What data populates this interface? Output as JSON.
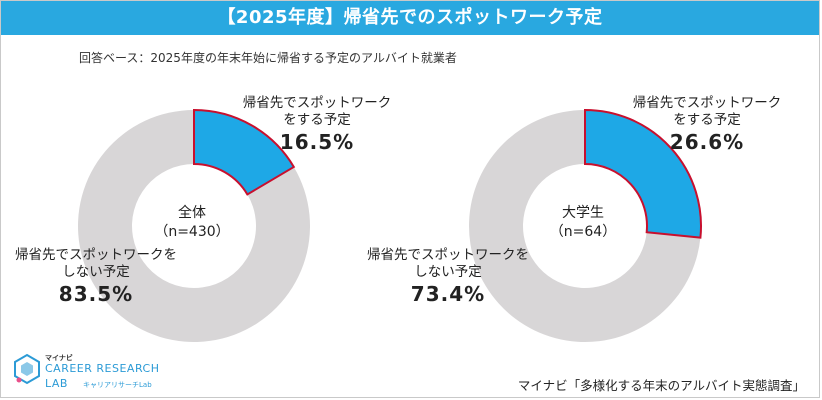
{
  "title": "【2025年度】帰省先でのスポットワーク予定",
  "basis_note": "回答ベース：2025年度の年末年始に帰省する予定のアルバイト就業者",
  "colors": {
    "header": "#29a8e0",
    "yes": "#1ea8e6",
    "no": "#d8d6d7",
    "yes_border": "#c8102e"
  },
  "chart_data": [
    {
      "type": "pie",
      "center_label": "全体",
      "n_label": "（n=430）",
      "slices": [
        {
          "label_line1": "帰省先でスポットワーク",
          "label_line2": "をする予定",
          "value": 16.5,
          "value_label": "16.5%"
        },
        {
          "label_line1": "帰省先でスポットワークを",
          "label_line2": "しない予定",
          "value": 83.5,
          "value_label": "83.5%"
        }
      ]
    },
    {
      "type": "pie",
      "center_label": "大学生",
      "n_label": "（n=64）",
      "slices": [
        {
          "label_line1": "帰省先でスポットワーク",
          "label_line2": "をする予定",
          "value": 26.6,
          "value_label": "26.6%"
        },
        {
          "label_line1": "帰省先でスポットワークを",
          "label_line2": "しない予定",
          "value": 73.4,
          "value_label": "73.4%"
        }
      ]
    }
  ],
  "logo": {
    "small": "マイナビ",
    "main": "CAREER RESEARCH",
    "sub": "LAB",
    "kana": "キャリアリサーチLab"
  },
  "source": "マイナビ「多様化する年末のアルバイト実態調査」"
}
